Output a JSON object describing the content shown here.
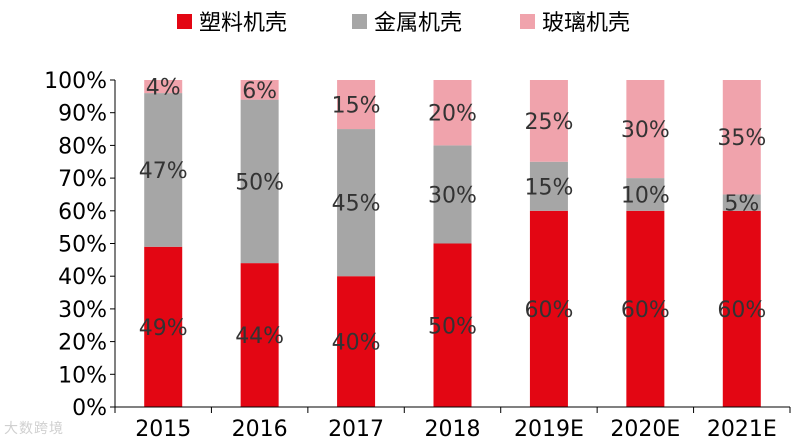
{
  "chart_data": {
    "type": "bar",
    "stacked": true,
    "percent": true,
    "categories": [
      "2015",
      "2016",
      "2017",
      "2018",
      "2019E",
      "2020E",
      "2021E"
    ],
    "series": [
      {
        "name": "塑料机壳",
        "color": "#e30613",
        "values": [
          49,
          44,
          40,
          50,
          60,
          60,
          60
        ],
        "labels": [
          "49%",
          "44%",
          "40%",
          "50%",
          "60%",
          "60%",
          "60%"
        ]
      },
      {
        "name": "金属机壳",
        "color": "#a6a6a6",
        "values": [
          47,
          50,
          45,
          30,
          15,
          10,
          5
        ],
        "labels": [
          "47%",
          "50%",
          "45%",
          "30%",
          "15%",
          "10%",
          "5%"
        ]
      },
      {
        "name": "玻璃机壳",
        "color": "#f0a3ac",
        "values": [
          4,
          6,
          15,
          20,
          25,
          30,
          35
        ],
        "labels": [
          "4%",
          "6%",
          "15%",
          "20%",
          "25%",
          "30%",
          "35%"
        ]
      }
    ],
    "yticks": [
      "0%",
      "10%",
      "20%",
      "30%",
      "40%",
      "50%",
      "60%",
      "70%",
      "80%",
      "90%",
      "100%"
    ],
    "ylim": [
      0,
      100
    ],
    "grid": false,
    "legend": "top"
  },
  "watermark": "大数跨境"
}
